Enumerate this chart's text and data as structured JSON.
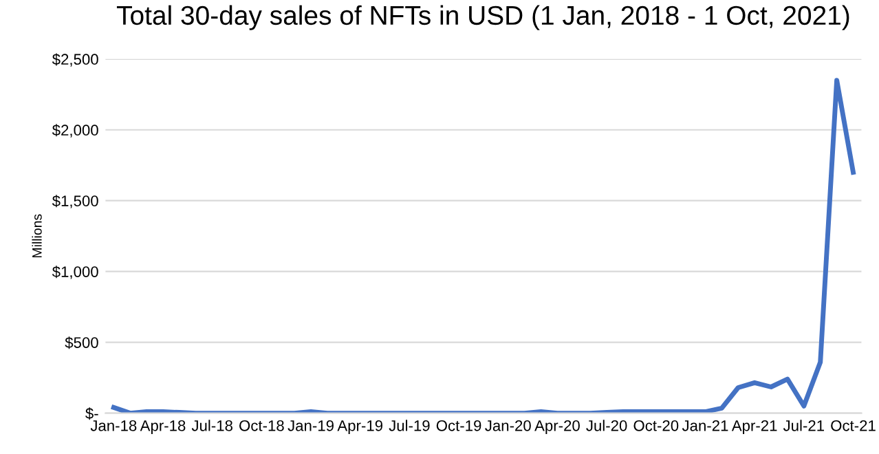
{
  "chart_data": {
    "type": "line",
    "title": "Total 30-day sales of NFTs in USD (1 Jan, 2018 - 1 Oct, 2021)",
    "ylabel": "Millions",
    "categories": [
      "Jan-18",
      null,
      null,
      "Apr-18",
      null,
      null,
      "Jul-18",
      null,
      null,
      "Oct-18",
      null,
      null,
      "Jan-19",
      null,
      null,
      "Apr-19",
      null,
      null,
      "Jul-19",
      null,
      null,
      "Oct-19",
      null,
      null,
      "Jan-20",
      null,
      null,
      "Apr-20",
      null,
      null,
      "Jul-20",
      null,
      null,
      "Oct-20",
      null,
      null,
      "Jan-21",
      null,
      null,
      "Apr-21",
      null,
      null,
      "Jul-21",
      null,
      null,
      "Oct-21"
    ],
    "series": [
      {
        "color": "#4472c4",
        "values": [
          40,
          0,
          10,
          10,
          5,
          0,
          0,
          0,
          0,
          0,
          0,
          0,
          10,
          0,
          0,
          0,
          0,
          0,
          0,
          0,
          0,
          0,
          0,
          0,
          0,
          0,
          10,
          0,
          0,
          0,
          5,
          10,
          10,
          10,
          10,
          10,
          10,
          35,
          180,
          215,
          185,
          240,
          50,
          360,
          2350,
          1700
        ]
      }
    ],
    "ylim": [
      0,
      2500
    ],
    "yticks": [
      {
        "value": 0,
        "label": "$-"
      },
      {
        "value": 500,
        "label": "$500"
      },
      {
        "value": 1000,
        "label": "$1,000"
      },
      {
        "value": 1500,
        "label": "$1,500"
      },
      {
        "value": 2000,
        "label": "$2,000"
      },
      {
        "value": 2500,
        "label": "$2,500"
      }
    ],
    "grid": "y",
    "legend": false
  }
}
